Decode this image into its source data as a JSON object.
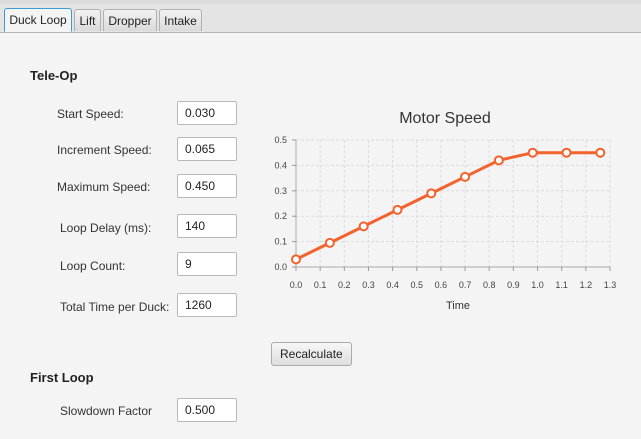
{
  "tabs": [
    {
      "label": "Duck Loop",
      "active": true
    },
    {
      "label": "Lift",
      "active": false
    },
    {
      "label": "Dropper",
      "active": false
    },
    {
      "label": "Intake",
      "active": false
    }
  ],
  "teleop": {
    "title": "Tele-Op",
    "fields": [
      {
        "label": "Start Speed:",
        "value": "0.030"
      },
      {
        "label": "Increment Speed:",
        "value": "0.065"
      },
      {
        "label": "Maximum Speed:",
        "value": "0.450"
      },
      {
        "label": "Loop Delay (ms):",
        "value": "140"
      },
      {
        "label": "Loop Count:",
        "value": "9"
      },
      {
        "label": "Total Time per Duck:",
        "value": "1260"
      }
    ]
  },
  "recalculate_label": "Recalculate",
  "first_loop": {
    "title": "First Loop",
    "fields": [
      {
        "label": "Slowdown Factor",
        "value": "0.500"
      }
    ]
  },
  "chart_data": {
    "type": "line",
    "title": "Motor Speed",
    "xlabel": "Time",
    "ylabel": "",
    "xlim": [
      0.0,
      1.3
    ],
    "ylim": [
      0.0,
      0.5
    ],
    "xticks": [
      "0.0",
      "0.1",
      "0.2",
      "0.3",
      "0.4",
      "0.5",
      "0.6",
      "0.7",
      "0.8",
      "0.9",
      "1.0",
      "1.1",
      "1.2",
      "1.3"
    ],
    "yticks": [
      "0.0",
      "0.1",
      "0.2",
      "0.3",
      "0.4",
      "0.5"
    ],
    "grid": true,
    "line_color": "#f3622d",
    "series": [
      {
        "x": [
          0.0,
          0.14,
          0.28,
          0.42,
          0.56,
          0.7,
          0.84,
          0.98,
          1.12,
          1.26
        ],
        "y": [
          0.03,
          0.095,
          0.16,
          0.225,
          0.29,
          0.355,
          0.42,
          0.45,
          0.45,
          0.45
        ]
      }
    ]
  }
}
